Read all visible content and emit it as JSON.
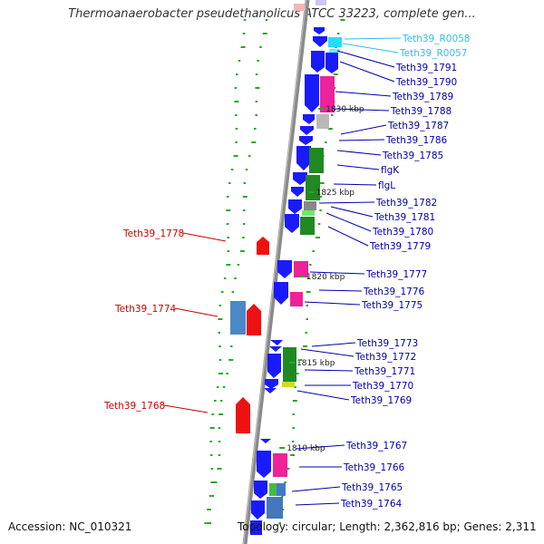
{
  "title": "Thermoanaerobacter pseudethanolicus ATCC 33223, complete gen...",
  "footer": {
    "accession": "Accession: NC_010321",
    "topology": "Topology: circular; Length: 2,362,816 bp; Genes: 2,311"
  },
  "colors": {
    "backbone": "#8a8a8a",
    "forward_gene": "#1a1aff",
    "reverse_gene": "#ee1111",
    "rna_label": "#33bbee",
    "cds_label": "#0000aa",
    "reverse_label": "#cc0000",
    "gc_dots": "#22aa22"
  },
  "kbp_ticks": [
    {
      "label": "1830 kbp",
      "kbp": 1830
    },
    {
      "label": "1825 kbp",
      "kbp": 1825
    },
    {
      "label": "1820 kbp",
      "kbp": 1820
    },
    {
      "label": "1815 kbp",
      "kbp": 1815
    },
    {
      "label": "1810 kbp",
      "kbp": 1810
    }
  ],
  "right_labels": [
    {
      "text": "Teth39_R0058",
      "kind": "rna"
    },
    {
      "text": "Teth39_R0057",
      "kind": "rna"
    },
    {
      "text": "Teth39_1791",
      "kind": "cds"
    },
    {
      "text": "Teth39_1790",
      "kind": "cds"
    },
    {
      "text": "Teth39_1789",
      "kind": "cds"
    },
    {
      "text": "Teth39_1788",
      "kind": "cds"
    },
    {
      "text": "Teth39_1787",
      "kind": "cds"
    },
    {
      "text": "Teth39_1786",
      "kind": "cds"
    },
    {
      "text": "Teth39_1785",
      "kind": "cds"
    },
    {
      "text": "flgK",
      "kind": "cds"
    },
    {
      "text": "flgL",
      "kind": "cds"
    },
    {
      "text": "Teth39_1782",
      "kind": "cds"
    },
    {
      "text": "Teth39_1781",
      "kind": "cds"
    },
    {
      "text": "Teth39_1780",
      "kind": "cds"
    },
    {
      "text": "Teth39_1779",
      "kind": "cds"
    },
    {
      "text": "Teth39_1777",
      "kind": "cds"
    },
    {
      "text": "Teth39_1776",
      "kind": "cds"
    },
    {
      "text": "Teth39_1775",
      "kind": "cds"
    },
    {
      "text": "Teth39_1773",
      "kind": "cds"
    },
    {
      "text": "Teth39_1772",
      "kind": "cds"
    },
    {
      "text": "Teth39_1771",
      "kind": "cds"
    },
    {
      "text": "Teth39_1770",
      "kind": "cds"
    },
    {
      "text": "Teth39_1769",
      "kind": "cds"
    },
    {
      "text": "Teth39_1767",
      "kind": "cds"
    },
    {
      "text": "Teth39_1766",
      "kind": "cds"
    },
    {
      "text": "Teth39_1765",
      "kind": "cds"
    },
    {
      "text": "Teth39_1764",
      "kind": "cds"
    }
  ],
  "left_labels": [
    {
      "text": "Teth39_1778"
    },
    {
      "text": "Teth39_1774"
    },
    {
      "text": "Teth39_1768"
    }
  ]
}
